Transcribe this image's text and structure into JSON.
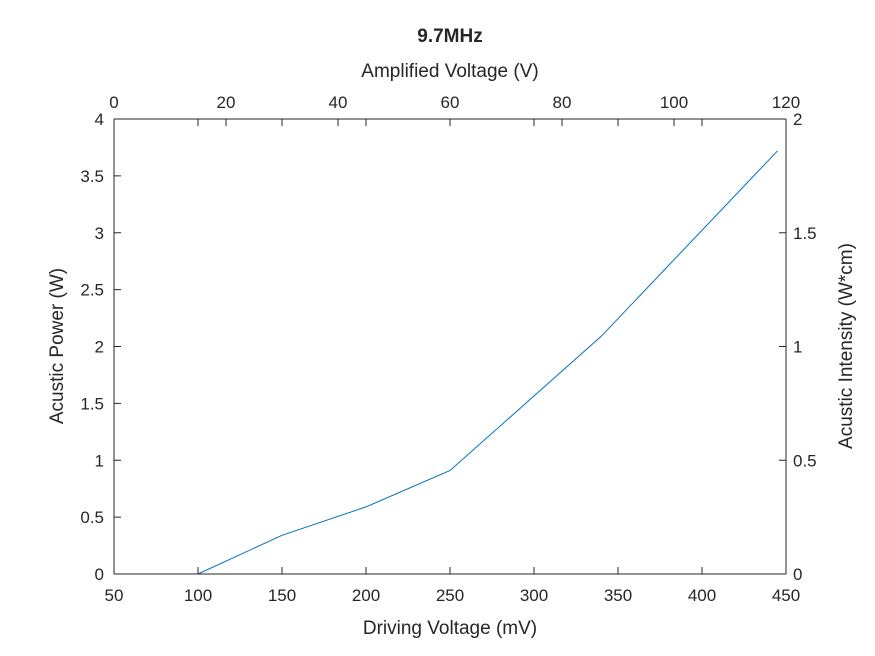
{
  "chart_data": {
    "type": "line",
    "title": "9.7MHz",
    "xlabel": "Driving Voltage (mV)",
    "x2label": "Amplified Voltage (V)",
    "ylabel": "Acustic Power (W)",
    "y2label": "Acustic Intensity (W*cm)",
    "xlim": [
      50,
      450
    ],
    "x2lim": [
      0,
      120
    ],
    "ylim": [
      0,
      4
    ],
    "y2lim": [
      0,
      2
    ],
    "xticks": [
      50,
      100,
      150,
      200,
      250,
      300,
      350,
      400,
      450
    ],
    "xtick_labels": [
      "50",
      "100",
      "150",
      "200",
      "250",
      "300",
      "350",
      "400",
      "450"
    ],
    "x2ticks": [
      0,
      20,
      40,
      60,
      80,
      100,
      120
    ],
    "x2tick_labels": [
      "0",
      "20",
      "40",
      "60",
      "80",
      "100",
      "120"
    ],
    "yticks": [
      0,
      0.5,
      1,
      1.5,
      2,
      2.5,
      3,
      3.5,
      4
    ],
    "ytick_labels": [
      "0",
      "0.5",
      "1",
      "1.5",
      "2",
      "2.5",
      "3",
      "3.5",
      "4"
    ],
    "y2ticks": [
      0,
      0.5,
      1,
      1.5,
      2
    ],
    "y2tick_labels": [
      "0",
      "0.5",
      "1",
      "1.5",
      "2"
    ],
    "grid": false,
    "series": [
      {
        "color": "#0072BD",
        "x": [
          100,
          150,
          200,
          250,
          340,
          445
        ],
        "y": [
          0,
          0.34,
          0.59,
          0.91,
          2.09,
          3.72
        ]
      }
    ]
  }
}
